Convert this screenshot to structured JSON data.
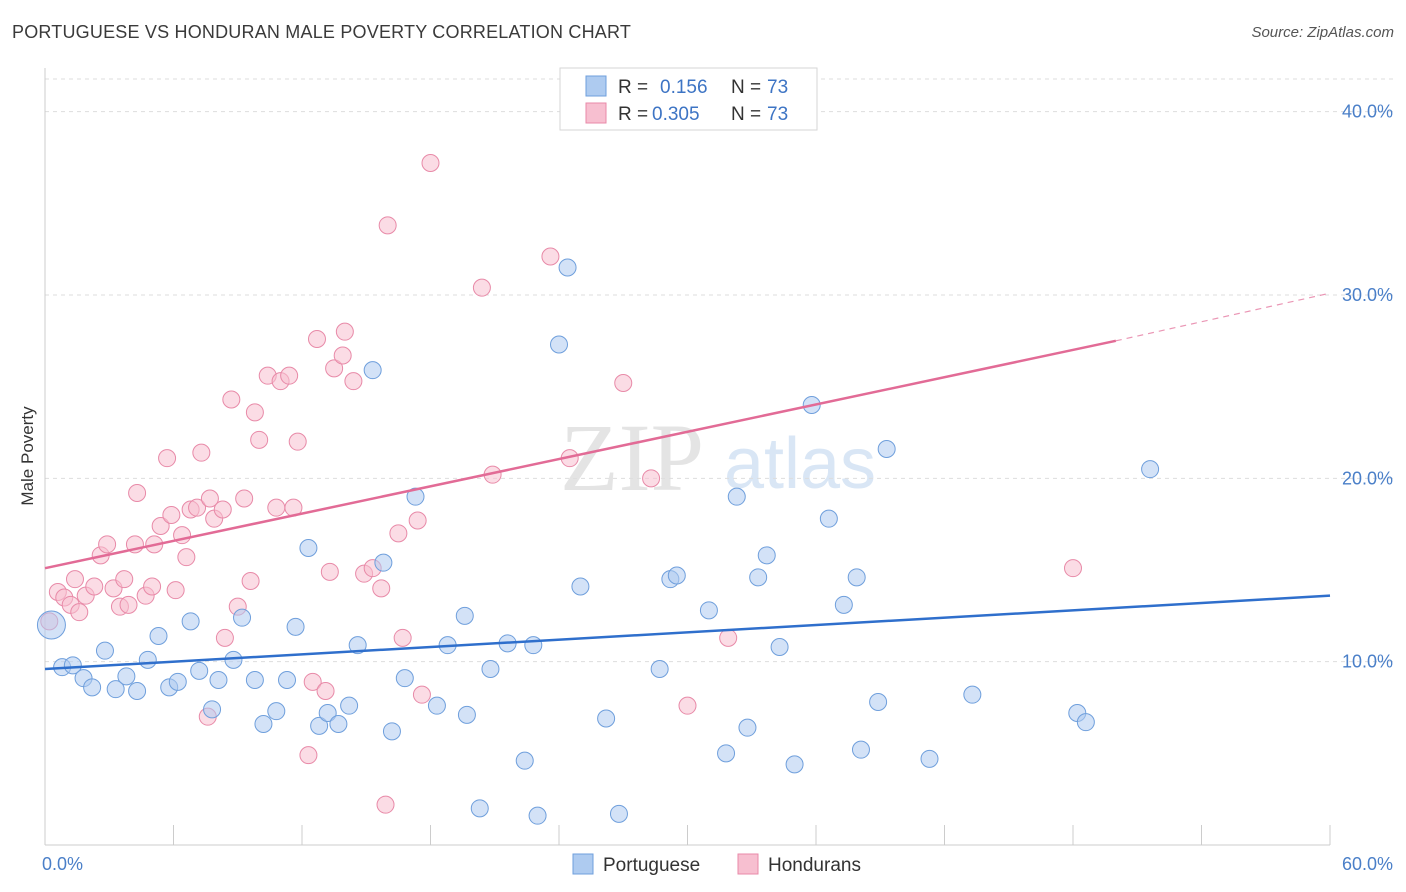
{
  "title": "PORTUGUESE VS HONDURAN MALE POVERTY CORRELATION CHART",
  "source": "Source: ZipAtlas.com",
  "watermark": {
    "zip": "ZIP",
    "atlas": "atlas"
  },
  "colors": {
    "blue_fill": "#aecbf0",
    "blue_stroke": "#6f9fdc",
    "blue_line": "#2f6fcc",
    "pink_fill": "#f7bfd0",
    "pink_stroke": "#e88aa8",
    "pink_line": "#e26b96",
    "grid": "#dddddd",
    "axis_label": "#4a7fc8"
  },
  "legend": {
    "rows": [
      {
        "r_label": "R =",
        "r_value": "0.156",
        "n_label": "N =",
        "n_value": "73",
        "series": "Portuguese"
      },
      {
        "r_label": "R =",
        "r_value": "0.305",
        "n_label": "N =",
        "n_value": "73",
        "series": "Hondurans"
      }
    ]
  },
  "chart_data": {
    "type": "scatter",
    "title": "PORTUGUESE VS HONDURAN MALE POVERTY CORRELATION CHART",
    "xlabel": "",
    "ylabel": "Male Poverty",
    "xlim": [
      0,
      60
    ],
    "ylim": [
      0,
      42
    ],
    "x_tick_labels": [
      {
        "value": 0,
        "label": "0.0%"
      },
      {
        "value": 60,
        "label": "60.0%"
      }
    ],
    "y_tick_labels": [
      {
        "value": 10,
        "label": "10.0%"
      },
      {
        "value": 20,
        "label": "20.0%"
      },
      {
        "value": 30,
        "label": "30.0%"
      },
      {
        "value": 40,
        "label": "40.0%"
      }
    ],
    "series": [
      {
        "name": "Portuguese",
        "r": 0.156,
        "n": 73,
        "trend": {
          "x": [
            0,
            60
          ],
          "y": [
            9.6,
            13.6
          ]
        },
        "points": [
          [
            0.3,
            12.0
          ],
          [
            0.8,
            9.7
          ],
          [
            1.3,
            9.8
          ],
          [
            1.8,
            9.1
          ],
          [
            2.2,
            8.6
          ],
          [
            2.8,
            10.6
          ],
          [
            3.3,
            8.5
          ],
          [
            3.8,
            9.2
          ],
          [
            4.3,
            8.4
          ],
          [
            4.8,
            10.1
          ],
          [
            5.3,
            11.4
          ],
          [
            5.8,
            8.6
          ],
          [
            6.2,
            8.9
          ],
          [
            6.8,
            12.2
          ],
          [
            7.2,
            9.5
          ],
          [
            7.8,
            7.4
          ],
          [
            8.1,
            9.0
          ],
          [
            8.8,
            10.1
          ],
          [
            9.2,
            12.4
          ],
          [
            9.8,
            9.0
          ],
          [
            10.2,
            6.6
          ],
          [
            10.8,
            7.3
          ],
          [
            11.3,
            9.0
          ],
          [
            11.7,
            11.9
          ],
          [
            12.3,
            16.2
          ],
          [
            12.8,
            6.5
          ],
          [
            13.2,
            7.2
          ],
          [
            13.7,
            6.6
          ],
          [
            14.2,
            7.6
          ],
          [
            14.6,
            10.9
          ],
          [
            15.3,
            25.9
          ],
          [
            15.8,
            15.4
          ],
          [
            16.2,
            6.2
          ],
          [
            16.8,
            9.1
          ],
          [
            17.3,
            19.0
          ],
          [
            18.3,
            7.6
          ],
          [
            18.8,
            10.9
          ],
          [
            19.6,
            12.5
          ],
          [
            19.7,
            7.1
          ],
          [
            20.3,
            2.0
          ],
          [
            20.8,
            9.6
          ],
          [
            21.6,
            11.0
          ],
          [
            22.4,
            4.6
          ],
          [
            22.8,
            10.9
          ],
          [
            23.0,
            1.6
          ],
          [
            24.0,
            27.3
          ],
          [
            24.4,
            31.5
          ],
          [
            25.0,
            14.1
          ],
          [
            26.2,
            6.9
          ],
          [
            26.8,
            1.7
          ],
          [
            28.7,
            9.6
          ],
          [
            29.2,
            14.5
          ],
          [
            29.5,
            14.7
          ],
          [
            31.0,
            12.8
          ],
          [
            31.8,
            5.0
          ],
          [
            32.3,
            19.0
          ],
          [
            32.8,
            6.4
          ],
          [
            33.3,
            14.6
          ],
          [
            33.7,
            15.8
          ],
          [
            34.3,
            10.8
          ],
          [
            35.0,
            4.4
          ],
          [
            35.8,
            24.0
          ],
          [
            36.6,
            17.8
          ],
          [
            37.3,
            13.1
          ],
          [
            37.9,
            14.6
          ],
          [
            38.1,
            5.2
          ],
          [
            38.9,
            7.8
          ],
          [
            39.3,
            21.6
          ],
          [
            41.3,
            4.7
          ],
          [
            43.3,
            8.2
          ],
          [
            48.2,
            7.2
          ],
          [
            48.6,
            6.7
          ],
          [
            51.6,
            20.5
          ]
        ]
      },
      {
        "name": "Hondurans",
        "r": 0.305,
        "n": 73,
        "trend": {
          "x": [
            0,
            50
          ],
          "y": [
            15.1,
            27.5
          ]
        },
        "trend_dashed": {
          "x": [
            50,
            60
          ],
          "y": [
            27.5,
            30.1
          ]
        },
        "points": [
          [
            0.2,
            12.2
          ],
          [
            0.6,
            13.8
          ],
          [
            0.9,
            13.5
          ],
          [
            1.2,
            13.1
          ],
          [
            1.4,
            14.5
          ],
          [
            1.6,
            12.7
          ],
          [
            1.9,
            13.6
          ],
          [
            2.3,
            14.1
          ],
          [
            2.6,
            15.8
          ],
          [
            2.9,
            16.4
          ],
          [
            3.2,
            14.0
          ],
          [
            3.5,
            13.0
          ],
          [
            3.7,
            14.5
          ],
          [
            3.9,
            13.1
          ],
          [
            4.2,
            16.4
          ],
          [
            4.3,
            19.2
          ],
          [
            4.7,
            13.6
          ],
          [
            5.0,
            14.1
          ],
          [
            5.1,
            16.4
          ],
          [
            5.4,
            17.4
          ],
          [
            5.7,
            21.1
          ],
          [
            5.9,
            18.0
          ],
          [
            6.1,
            13.9
          ],
          [
            6.4,
            16.9
          ],
          [
            6.6,
            15.7
          ],
          [
            6.8,
            18.3
          ],
          [
            7.1,
            18.4
          ],
          [
            7.3,
            21.4
          ],
          [
            7.6,
            7.0
          ],
          [
            7.7,
            18.9
          ],
          [
            7.9,
            17.8
          ],
          [
            8.3,
            18.3
          ],
          [
            8.4,
            11.3
          ],
          [
            8.7,
            24.3
          ],
          [
            9.0,
            13.0
          ],
          [
            9.3,
            18.9
          ],
          [
            9.6,
            14.4
          ],
          [
            9.8,
            23.6
          ],
          [
            10.0,
            22.1
          ],
          [
            10.4,
            25.6
          ],
          [
            10.8,
            18.4
          ],
          [
            11.0,
            25.3
          ],
          [
            11.4,
            25.6
          ],
          [
            11.6,
            18.4
          ],
          [
            11.8,
            22.0
          ],
          [
            12.3,
            4.9
          ],
          [
            12.5,
            8.9
          ],
          [
            12.7,
            27.6
          ],
          [
            13.1,
            8.4
          ],
          [
            13.3,
            14.9
          ],
          [
            13.5,
            26.0
          ],
          [
            13.9,
            26.7
          ],
          [
            14.0,
            28.0
          ],
          [
            14.4,
            25.3
          ],
          [
            14.9,
            14.8
          ],
          [
            15.3,
            15.1
          ],
          [
            15.7,
            14.0
          ],
          [
            15.9,
            2.2
          ],
          [
            16.0,
            33.8
          ],
          [
            16.5,
            17.0
          ],
          [
            16.7,
            11.3
          ],
          [
            17.4,
            17.7
          ],
          [
            17.6,
            8.2
          ],
          [
            18.0,
            37.2
          ],
          [
            20.4,
            30.4
          ],
          [
            20.9,
            20.2
          ],
          [
            23.6,
            32.1
          ],
          [
            24.5,
            21.1
          ],
          [
            27.0,
            25.2
          ],
          [
            28.3,
            20.0
          ],
          [
            30.0,
            7.6
          ],
          [
            31.9,
            11.3
          ],
          [
            48.0,
            15.1
          ]
        ]
      }
    ],
    "legend_bottom": [
      "Portuguese",
      "Hondurans"
    ],
    "grid": true
  }
}
